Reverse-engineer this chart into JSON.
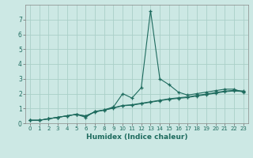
{
  "xlabel": "Humidex (Indice chaleur)",
  "x_values": [
    0,
    1,
    2,
    3,
    4,
    5,
    6,
    7,
    8,
    9,
    10,
    11,
    12,
    13,
    14,
    15,
    16,
    17,
    18,
    19,
    20,
    21,
    22,
    23
  ],
  "line1": [
    0.2,
    0.2,
    0.3,
    0.4,
    0.5,
    0.6,
    0.4,
    0.8,
    0.9,
    1.1,
    2.0,
    1.7,
    2.4,
    7.6,
    3.0,
    2.6,
    2.1,
    1.9,
    2.0,
    2.1,
    2.2,
    2.3,
    2.3,
    2.1
  ],
  "line2": [
    0.2,
    0.2,
    0.3,
    0.4,
    0.5,
    0.6,
    0.5,
    0.75,
    0.9,
    1.05,
    1.2,
    1.25,
    1.35,
    1.45,
    1.55,
    1.65,
    1.72,
    1.78,
    1.88,
    1.97,
    2.07,
    2.17,
    2.22,
    2.18
  ],
  "line3": [
    0.2,
    0.2,
    0.3,
    0.4,
    0.5,
    0.6,
    0.48,
    0.78,
    0.88,
    1.02,
    1.18,
    1.22,
    1.32,
    1.42,
    1.52,
    1.62,
    1.68,
    1.74,
    1.84,
    1.93,
    2.03,
    2.13,
    2.18,
    2.14
  ],
  "line_color": "#1e6b5e",
  "bg_color": "#cce8e4",
  "grid_color": "#aacfc8",
  "xlim": [
    -0.5,
    23.5
  ],
  "ylim": [
    0.0,
    8.0
  ],
  "yticks": [
    0,
    1,
    2,
    3,
    4,
    5,
    6,
    7
  ],
  "xticks": [
    0,
    1,
    2,
    3,
    4,
    5,
    6,
    7,
    8,
    9,
    10,
    11,
    12,
    13,
    14,
    15,
    16,
    17,
    18,
    19,
    20,
    21,
    22,
    23
  ]
}
